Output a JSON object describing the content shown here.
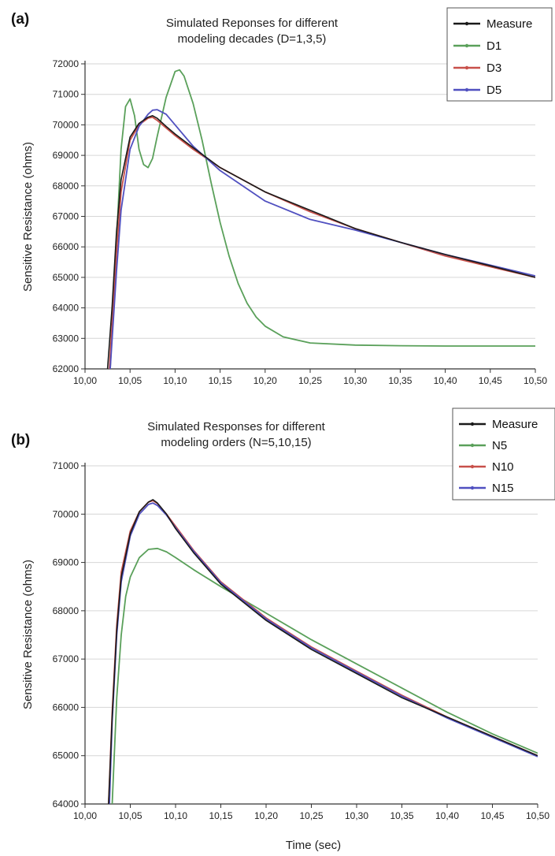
{
  "figure": {
    "colors": {
      "grid": "#d6d6d6",
      "axis": "#333333",
      "text": "#222222",
      "Measure": "#1a1a1a",
      "green": "#5aa05a",
      "red": "#c8504a",
      "blue": "#5050c0"
    }
  },
  "chart_data": [
    {
      "type": "line",
      "panel_label": "(a)",
      "title_lines": [
        "Simulated Reponses for different",
        "modeling decades (D=1,3,5)"
      ],
      "xlabel": "",
      "ylabel": "Sensitive Resistance (ohms)",
      "xlim": [
        10.0,
        10.5
      ],
      "ylim": [
        62000,
        72000
      ],
      "x_ticks": [
        "10,00",
        "10,05",
        "10,10",
        "10,15",
        "10,20",
        "10,25",
        "10,30",
        "10,35",
        "10,40",
        "10,45",
        "10,50"
      ],
      "y_ticks": [
        "62000",
        "63000",
        "64000",
        "65000",
        "66000",
        "67000",
        "68000",
        "69000",
        "70000",
        "71000",
        "72000"
      ],
      "grid": "horizontal",
      "legend_position": "top-right",
      "series": [
        {
          "name": "Measure",
          "color": "#1a1a1a",
          "x": [
            10.025,
            10.03,
            10.035,
            10.04,
            10.05,
            10.06,
            10.07,
            10.075,
            10.08,
            10.09,
            10.1,
            10.12,
            10.15,
            10.2,
            10.25,
            10.3,
            10.35,
            10.4,
            10.45,
            10.5
          ],
          "y": [
            62000,
            64000,
            66500,
            68200,
            69600,
            70050,
            70250,
            70300,
            70220,
            69950,
            69700,
            69250,
            68600,
            67800,
            67200,
            66600,
            66150,
            65750,
            65380,
            65000
          ]
        },
        {
          "name": "D1",
          "color": "#5aa05a",
          "x": [
            10.028,
            10.035,
            10.04,
            10.045,
            10.05,
            10.055,
            10.06,
            10.065,
            10.07,
            10.075,
            10.08,
            10.09,
            10.1,
            10.105,
            10.11,
            10.12,
            10.13,
            10.14,
            10.15,
            10.16,
            10.17,
            10.18,
            10.19,
            10.2,
            10.22,
            10.25,
            10.3,
            10.35,
            10.4,
            10.45,
            10.5
          ],
          "y": [
            62000,
            66200,
            69200,
            70600,
            70850,
            70300,
            69200,
            68700,
            68600,
            68900,
            69600,
            70900,
            71750,
            71800,
            71600,
            70700,
            69500,
            68100,
            66800,
            65700,
            64800,
            64150,
            63700,
            63400,
            63050,
            62850,
            62780,
            62760,
            62750,
            62750,
            62750
          ]
        },
        {
          "name": "D3",
          "color": "#c8504a",
          "x": [
            10.027,
            10.035,
            10.04,
            10.05,
            10.06,
            10.07,
            10.075,
            10.08,
            10.09,
            10.1,
            10.12,
            10.15,
            10.2,
            10.25,
            10.3,
            10.35,
            10.4,
            10.45,
            10.5
          ],
          "y": [
            62000,
            65800,
            67800,
            69500,
            70000,
            70220,
            70250,
            70150,
            69900,
            69650,
            69200,
            68600,
            67800,
            67150,
            66600,
            66150,
            65700,
            65350,
            65000
          ]
        },
        {
          "name": "D5",
          "color": "#5050c0",
          "x": [
            10.028,
            10.035,
            10.04,
            10.05,
            10.06,
            10.07,
            10.075,
            10.08,
            10.09,
            10.1,
            10.12,
            10.15,
            10.2,
            10.25,
            10.3,
            10.35,
            10.4,
            10.45,
            10.5
          ],
          "y": [
            62000,
            65200,
            67200,
            69200,
            69950,
            70350,
            70480,
            70500,
            70350,
            70000,
            69300,
            68500,
            67500,
            66900,
            66550,
            66150,
            65750,
            65400,
            65050
          ]
        }
      ]
    },
    {
      "type": "line",
      "panel_label": "(b)",
      "title_lines": [
        "Simulated Responses for different",
        "modeling orders (N=5,10,15)"
      ],
      "xlabel": "Time (sec)",
      "ylabel": "Sensitive Resistance (ohms)",
      "xlim": [
        10.0,
        10.5
      ],
      "ylim": [
        64000,
        71000
      ],
      "x_ticks": [
        "10,00",
        "10,05",
        "10,10",
        "10,15",
        "10,20",
        "10,25",
        "10,30",
        "10,35",
        "10,40",
        "10,45",
        "10,50"
      ],
      "y_ticks": [
        "64000",
        "65000",
        "66000",
        "67000",
        "68000",
        "69000",
        "70000",
        "71000"
      ],
      "grid": "horizontal",
      "legend_position": "top-right",
      "series": [
        {
          "name": "Measure",
          "color": "#1a1a1a",
          "x": [
            10.026,
            10.03,
            10.035,
            10.04,
            10.05,
            10.06,
            10.07,
            10.075,
            10.08,
            10.09,
            10.1,
            10.12,
            10.15,
            10.2,
            10.25,
            10.3,
            10.35,
            10.4,
            10.45,
            10.5
          ],
          "y": [
            64000,
            65800,
            67600,
            68700,
            69600,
            70050,
            70250,
            70300,
            70230,
            70000,
            69700,
            69200,
            68550,
            67800,
            67200,
            66700,
            66200,
            65800,
            65400,
            65000
          ]
        },
        {
          "name": "N5",
          "color": "#5aa05a",
          "x": [
            10.03,
            10.035,
            10.04,
            10.045,
            10.05,
            10.06,
            10.07,
            10.08,
            10.09,
            10.1,
            10.12,
            10.15,
            10.2,
            10.25,
            10.3,
            10.35,
            10.4,
            10.45,
            10.5
          ],
          "y": [
            64000,
            66200,
            67500,
            68300,
            68700,
            69100,
            69270,
            69290,
            69220,
            69100,
            68850,
            68500,
            67950,
            67400,
            66900,
            66400,
            65900,
            65450,
            65050
          ]
        },
        {
          "name": "N10",
          "color": "#c8504a",
          "x": [
            10.026,
            10.03,
            10.035,
            10.04,
            10.05,
            10.06,
            10.07,
            10.075,
            10.08,
            10.09,
            10.1,
            10.12,
            10.15,
            10.2,
            10.25,
            10.3,
            10.35,
            10.4,
            10.45,
            10.5
          ],
          "y": [
            64000,
            65900,
            67700,
            68800,
            69650,
            70050,
            70250,
            70280,
            70220,
            70000,
            69750,
            69250,
            68600,
            67850,
            67250,
            66750,
            66250,
            65800,
            65400,
            65000
          ]
        },
        {
          "name": "N15",
          "color": "#5050c0",
          "x": [
            10.027,
            10.03,
            10.035,
            10.04,
            10.05,
            10.06,
            10.07,
            10.075,
            10.08,
            10.09,
            10.1,
            10.12,
            10.15,
            10.2,
            10.25,
            10.3,
            10.35,
            10.4,
            10.45,
            10.5
          ],
          "y": [
            64000,
            65700,
            67500,
            68600,
            69550,
            70000,
            70200,
            70230,
            70180,
            69980,
            69720,
            69230,
            68580,
            67830,
            67230,
            66730,
            66230,
            65780,
            65380,
            64980
          ]
        }
      ]
    }
  ]
}
